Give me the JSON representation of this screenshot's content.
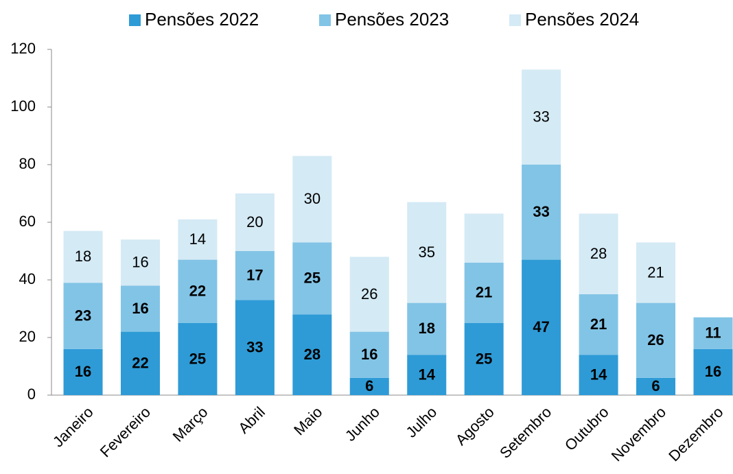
{
  "chart_data": {
    "type": "stacked_bar",
    "categories": [
      "Janeiro",
      "Fevereiro",
      "Março",
      "Abril",
      "Maio",
      "Junho",
      "Julho",
      "Agosto",
      "Setembro",
      "Outubro",
      "Novembro",
      "Dezembro"
    ],
    "series": [
      {
        "name": "Pensões 2022",
        "color": "#2e9bd6",
        "values": [
          16,
          22,
          25,
          33,
          28,
          6,
          14,
          25,
          47,
          14,
          6,
          16
        ]
      },
      {
        "name": "Pensões 2023",
        "color": "#82c4e6",
        "values": [
          23,
          16,
          22,
          17,
          25,
          16,
          18,
          21,
          33,
          21,
          26,
          11
        ]
      },
      {
        "name": "Pensões 2024",
        "color": "#d4eaf5",
        "values": [
          18,
          16,
          14,
          20,
          30,
          26,
          35,
          17,
          33,
          28,
          21,
          null
        ],
        "value_labels": [
          "18",
          "16",
          "14",
          "20",
          "30",
          "26",
          "35",
          null,
          "33",
          "28",
          "21",
          null
        ]
      }
    ],
    "ylim": [
      0,
      120
    ],
    "yticks": [
      0,
      20,
      40,
      60,
      80,
      100,
      120
    ],
    "legend": "top"
  }
}
